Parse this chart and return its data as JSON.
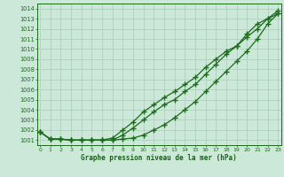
{
  "title": "Graphe pression niveau de la mer (hPa)",
  "xlabel_hours": [
    0,
    1,
    2,
    3,
    4,
    5,
    6,
    7,
    8,
    9,
    10,
    11,
    12,
    13,
    14,
    15,
    16,
    17,
    18,
    19,
    20,
    21,
    22,
    23
  ],
  "line1": [
    1001.8,
    1001.1,
    1001.1,
    1001.0,
    1001.0,
    1001.0,
    1001.0,
    1001.0,
    1001.1,
    1001.2,
    1001.5,
    1002.0,
    1002.5,
    1003.2,
    1004.0,
    1004.8,
    1005.8,
    1006.8,
    1007.8,
    1008.8,
    1009.8,
    1011.0,
    1012.5,
    1013.5
  ],
  "line2": [
    1001.8,
    1001.1,
    1001.1,
    1001.0,
    1001.0,
    1001.0,
    1001.0,
    1001.0,
    1001.5,
    1002.2,
    1003.0,
    1003.8,
    1004.5,
    1005.0,
    1005.8,
    1006.5,
    1007.5,
    1008.5,
    1009.5,
    1010.3,
    1011.2,
    1012.0,
    1013.0,
    1013.8
  ],
  "line3": [
    1001.8,
    1001.1,
    1001.1,
    1001.0,
    1001.0,
    1001.0,
    1001.0,
    1001.2,
    1002.0,
    1002.8,
    1003.8,
    1004.5,
    1005.2,
    1005.8,
    1006.5,
    1007.2,
    1008.2,
    1009.0,
    1009.8,
    1010.3,
    1011.5,
    1012.5,
    1013.0,
    1013.5
  ],
  "ylim": [
    1000.5,
    1014.5
  ],
  "xlim": [
    -0.3,
    23.3
  ],
  "yticks": [
    1001,
    1002,
    1003,
    1004,
    1005,
    1006,
    1007,
    1008,
    1009,
    1010,
    1011,
    1012,
    1013,
    1014
  ],
  "xticks": [
    0,
    1,
    2,
    3,
    4,
    5,
    6,
    7,
    8,
    9,
    10,
    11,
    12,
    13,
    14,
    15,
    16,
    17,
    18,
    19,
    20,
    21,
    22,
    23
  ],
  "line_color": "#1a6b1a",
  "bg_color": "#cce8d8",
  "grid_color": "#aaccbb",
  "title_color": "#1a5e1a",
  "marker": "+",
  "marker_size": 4,
  "linewidth": 0.9
}
